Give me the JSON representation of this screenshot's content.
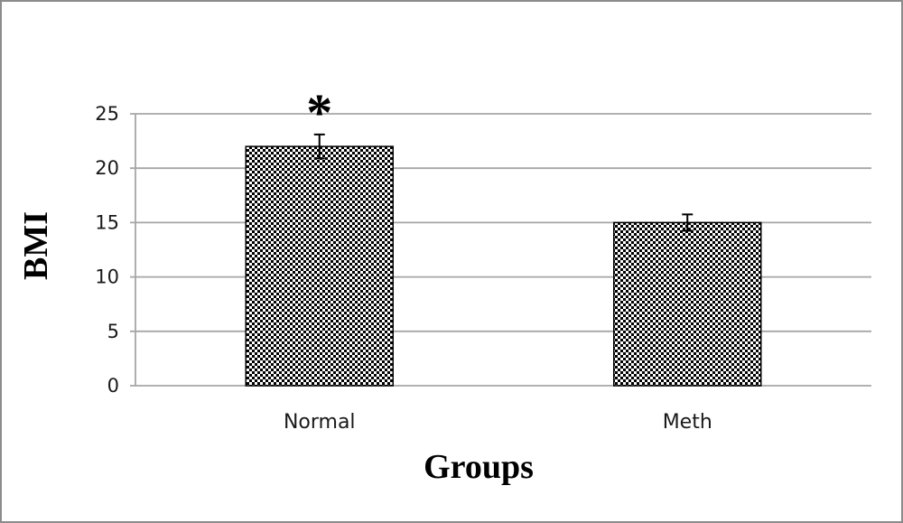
{
  "chart_data": {
    "type": "bar",
    "title": "",
    "xlabel": "Groups",
    "ylabel": "BMI",
    "categories": [
      "Normal",
      "Meth"
    ],
    "values": [
      22,
      15
    ],
    "error": [
      1.1,
      0.75
    ],
    "annotations": [
      {
        "category": "Normal",
        "text": "*"
      }
    ],
    "ylim": [
      0,
      25
    ],
    "yticks": [
      0,
      5,
      10,
      15,
      20,
      25
    ],
    "grid": true,
    "legend": "none",
    "fill_pattern": "checkerboard",
    "colors": {
      "bar_dark": "#000000",
      "bar_light": "#ffffff",
      "gridline": "#a6a6a6",
      "frame": "#8c8c8c"
    }
  }
}
